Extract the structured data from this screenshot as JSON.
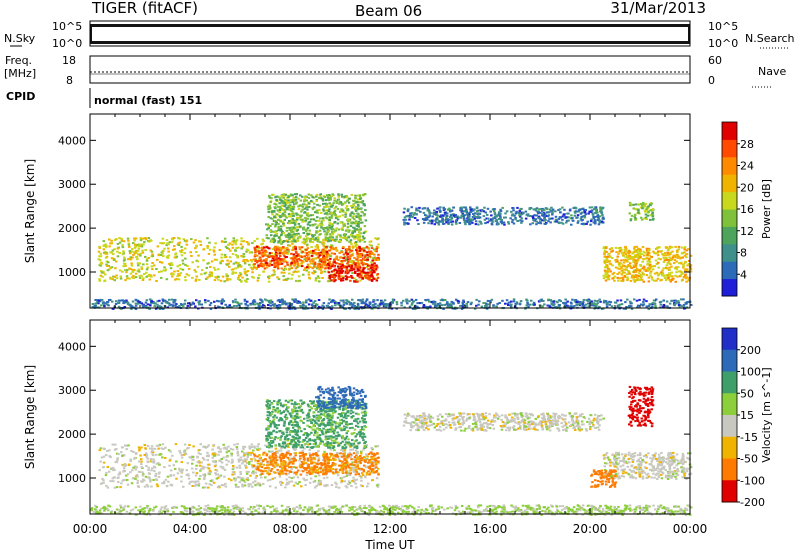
{
  "header": {
    "title": "TIGER (fitACF)",
    "beam": "Beam 06",
    "date": "31/Mar/2013"
  },
  "top_panels": {
    "nsky_label": "N.Sky",
    "nsky_ticks": [
      "10^5",
      "10^0"
    ],
    "nsearch_label": "N.Search",
    "nsearch_ticks": [
      "10^5",
      "10^0"
    ],
    "freq_label_1": "Freq.",
    "freq_label_2": "[MHz]",
    "freq_ticks": [
      "18",
      "8"
    ],
    "nave_label": "Nave",
    "nave_ticks": [
      "60",
      "0"
    ],
    "cpid_label": "CPID",
    "cpid_value": "normal (fast) 151"
  },
  "x_axis": {
    "label": "Time UT",
    "ticks": [
      "00:00",
      "04:00",
      "08:00",
      "12:00",
      "16:00",
      "20:00",
      "00:00"
    ]
  },
  "chart_data": [
    {
      "type": "heatmap",
      "ylabel": "Slant Range [km]",
      "ylim": [
        180,
        4600
      ],
      "xlim": [
        0,
        24
      ],
      "yticks": [
        1000,
        2000,
        3000,
        4000
      ],
      "colorbar": {
        "label": "Power [dB]",
        "range": [
          0,
          32
        ],
        "ticks": [
          4,
          8,
          12,
          16,
          20,
          24,
          28
        ]
      },
      "regions": [
        {
          "x": [
            0.3,
            11.5
          ],
          "y": [
            800,
            1800
          ],
          "value": 18
        },
        {
          "x": [
            6.5,
            11.5
          ],
          "y": [
            1100,
            1600
          ],
          "value": 26
        },
        {
          "x": [
            9.5,
            11.5
          ],
          "y": [
            800,
            1200
          ],
          "value": 30
        },
        {
          "x": [
            7.0,
            11.0
          ],
          "y": [
            1700,
            2800
          ],
          "value": 14
        },
        {
          "x": [
            12.5,
            20.5
          ],
          "y": [
            2100,
            2500
          ],
          "value": 6
        },
        {
          "x": [
            20.5,
            24.0
          ],
          "y": [
            800,
            1600
          ],
          "value": 20
        },
        {
          "x": [
            21.5,
            22.5
          ],
          "y": [
            2200,
            2600
          ],
          "value": 14
        },
        {
          "x": [
            0.0,
            24.0
          ],
          "y": [
            180,
            400
          ],
          "value": 6
        }
      ]
    },
    {
      "type": "heatmap",
      "ylabel": "Slant Range [km]",
      "ylim": [
        180,
        4600
      ],
      "xlim": [
        0,
        24
      ],
      "yticks": [
        1000,
        2000,
        3000,
        4000
      ],
      "colorbar": {
        "label": "Velocity [m s^-1]",
        "ticks": [
          200,
          100,
          50,
          15,
          -15,
          -50,
          -100,
          -200
        ]
      },
      "regions": [
        {
          "x": [
            0.3,
            11.5
          ],
          "y": [
            800,
            1800
          ],
          "value": 0
        },
        {
          "x": [
            6.5,
            11.5
          ],
          "y": [
            1100,
            1600
          ],
          "value": -60
        },
        {
          "x": [
            7.0,
            11.0
          ],
          "y": [
            1700,
            2800
          ],
          "value": 60
        },
        {
          "x": [
            9.0,
            11.0
          ],
          "y": [
            2600,
            3100
          ],
          "value": 150
        },
        {
          "x": [
            12.5,
            20.5
          ],
          "y": [
            2100,
            2500
          ],
          "value": 0
        },
        {
          "x": [
            20.5,
            24.0
          ],
          "y": [
            1000,
            1600
          ],
          "value": 0
        },
        {
          "x": [
            21.5,
            22.5
          ],
          "y": [
            2200,
            3100
          ],
          "value": -180
        },
        {
          "x": [
            20.0,
            21.0
          ],
          "y": [
            800,
            1200
          ],
          "value": -80
        },
        {
          "x": [
            0.0,
            24.0
          ],
          "y": [
            180,
            400
          ],
          "value": 20
        }
      ]
    }
  ],
  "colors": {
    "power_scale": [
      "#1f1fd8",
      "#2d6ab7",
      "#3f8f8a",
      "#4ea45c",
      "#7fc13a",
      "#c8d81c",
      "#f0b400",
      "#ff8a00",
      "#ff4a00",
      "#e00000"
    ],
    "velocity_scale": [
      "#1f2fc8",
      "#2d6ab7",
      "#3f9f6a",
      "#8ccf3a",
      "#c8c8c0",
      "#f0b400",
      "#ff7a00",
      "#e00000"
    ]
  }
}
